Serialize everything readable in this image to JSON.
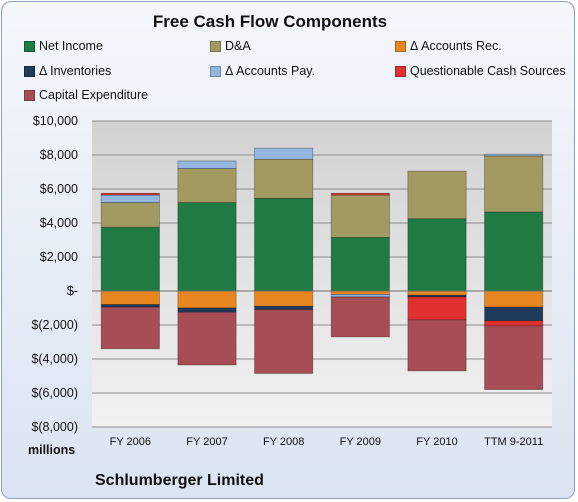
{
  "chart_data": {
    "type": "bar",
    "stacked": true,
    "title": "Free Cash Flow Components",
    "categories": [
      "FY 2006",
      "FY 2007",
      "FY 2008",
      "FY 2009",
      "FY 2010",
      "TTM 9-2011"
    ],
    "series": [
      {
        "name": "Net Income",
        "color": "#1f7a44",
        "values": [
          3750,
          5200,
          5450,
          3150,
          4250,
          4650
        ]
      },
      {
        "name": "D&A",
        "color": "#a39a62",
        "values": [
          1450,
          2000,
          2300,
          2500,
          2800,
          3300
        ]
      },
      {
        "name": "Δ Accounts Rec.",
        "color": "#e8861f",
        "values": [
          -800,
          -1000,
          -900,
          -200,
          -250,
          -950
        ]
      },
      {
        "name": "Δ Inventories",
        "color": "#1f3a5a",
        "values": [
          -150,
          -250,
          -200,
          0,
          -100,
          -800
        ]
      },
      {
        "name": "Δ Accounts Pay.",
        "color": "#93b7df",
        "values": [
          450,
          450,
          650,
          -150,
          0,
          100
        ]
      },
      {
        "name": "Questionable Cash Sources",
        "color": "#e03030",
        "values": [
          100,
          0,
          0,
          100,
          -1350,
          -300
        ]
      },
      {
        "name": "Capital Expenditure",
        "color": "#a64d55",
        "values": [
          -2450,
          -3100,
          -3750,
          -2350,
          -3000,
          -3750
        ]
      }
    ],
    "ylim": [
      -8000,
      10000
    ],
    "yticks": [
      10000,
      8000,
      6000,
      4000,
      2000,
      0,
      -2000,
      -4000,
      -6000,
      -8000
    ],
    "ytick_labels": [
      "$10,000",
      "$8,000",
      "$6,000",
      "$4,000",
      "$2,000",
      "$-",
      "$(2,000)",
      "$(4,000)",
      "$(6,000)",
      "$(8,000)"
    ],
    "ylabel": "millions",
    "xlabel": "",
    "grid": true,
    "legend_position": "top"
  },
  "company": "Schlumberger Limited"
}
